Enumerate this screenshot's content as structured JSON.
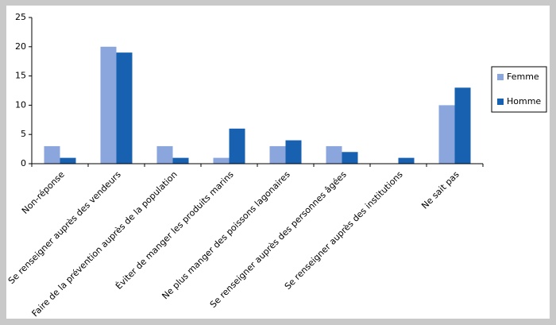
{
  "chart_data": {
    "type": "bar",
    "categories": [
      "Non-réponse",
      "Se renseigner auprès des vendeurs",
      "Faire de la prévention auprès de la population",
      "Éviter de manger les produits marins",
      "Ne plus manger des poissons lagonaires",
      "Se renseigner auprès des personnes âgées",
      "Se renseigner auprès des institutions",
      "Ne sait pas"
    ],
    "series": [
      {
        "name": "Femme",
        "color": "#8aa6dc",
        "values": [
          3,
          20,
          3,
          1,
          3,
          3,
          0,
          10
        ]
      },
      {
        "name": "Homme",
        "color": "#1761b0",
        "values": [
          1,
          19,
          1,
          6,
          4,
          2,
          1,
          13
        ]
      }
    ],
    "ylim": [
      0,
      25
    ],
    "yticks": [
      0,
      5,
      10,
      15,
      20,
      25
    ],
    "legend": "right"
  }
}
